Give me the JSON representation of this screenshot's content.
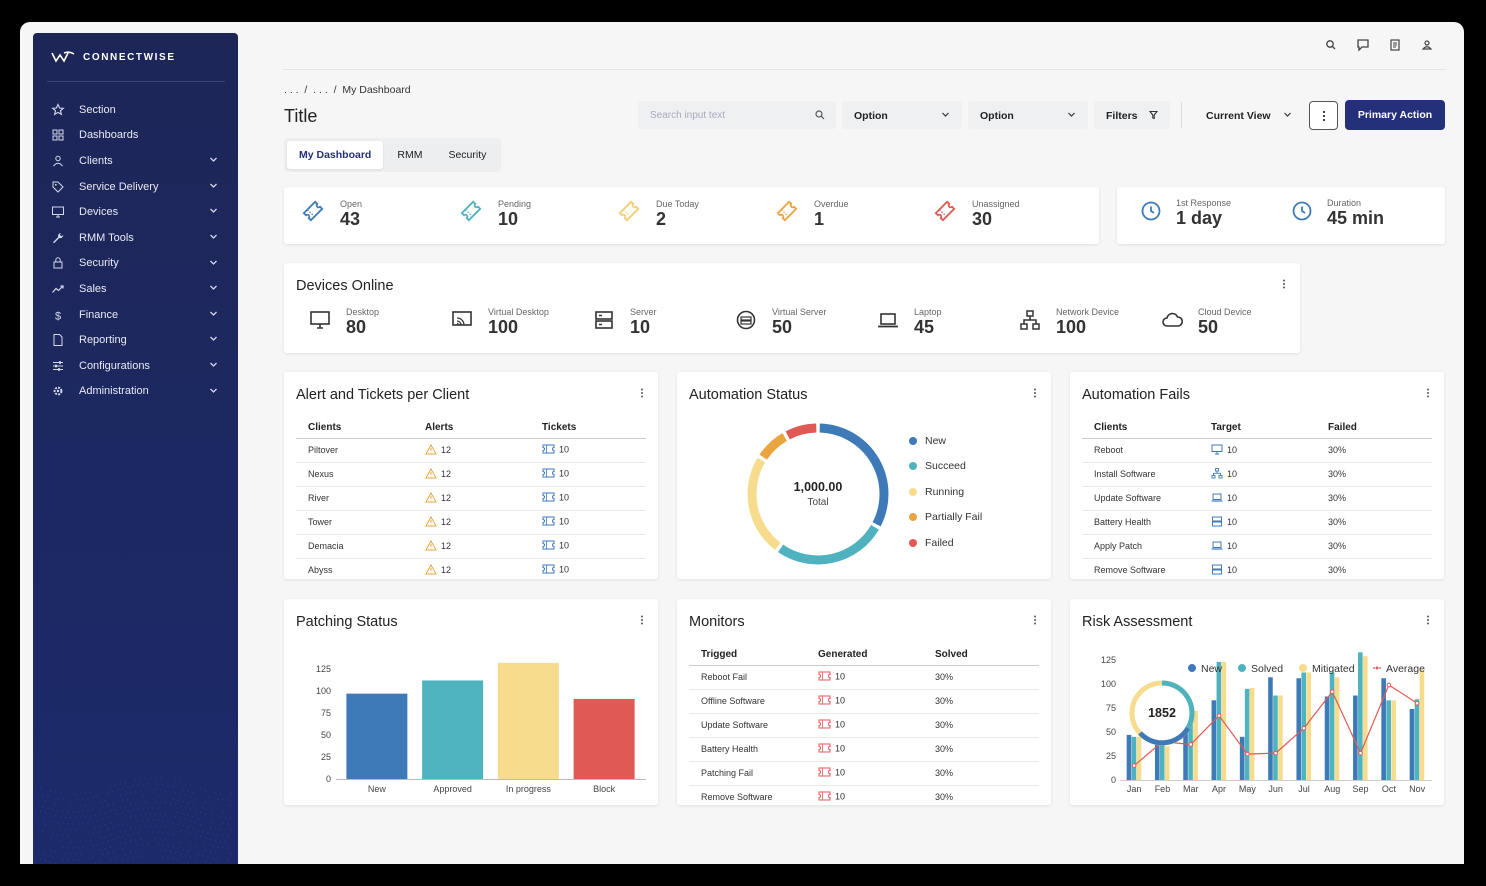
{
  "app": {
    "brand": "CONNECTWISE"
  },
  "sidebar": {
    "items": [
      {
        "label": "Section",
        "icon": "star-icon",
        "chevron": false
      },
      {
        "label": "Dashboards",
        "icon": "grid-icon",
        "chevron": false
      },
      {
        "label": "Clients",
        "icon": "user-icon",
        "chevron": true
      },
      {
        "label": "Service Delivery",
        "icon": "tag-icon",
        "chevron": true
      },
      {
        "label": "Devices",
        "icon": "monitor-icon",
        "chevron": true
      },
      {
        "label": "RMM Tools",
        "icon": "wrench-icon",
        "chevron": true
      },
      {
        "label": "Security",
        "icon": "lock-icon",
        "chevron": true
      },
      {
        "label": "Sales",
        "icon": "trend-icon",
        "chevron": true
      },
      {
        "label": "Finance",
        "icon": "dollar-icon",
        "chevron": true
      },
      {
        "label": "Reporting",
        "icon": "file-icon",
        "chevron": true
      },
      {
        "label": "Configurations",
        "icon": "sliders-icon",
        "chevron": true
      },
      {
        "label": "Administration",
        "icon": "gear-icon",
        "chevron": true
      }
    ]
  },
  "header": {
    "breadcrumb": ". . .  /  . . .  /  My Dashboard",
    "title": "Title",
    "search_placeholder": "Search input text",
    "option1": "Option",
    "option2": "Option",
    "filters": "Filters",
    "current_view": "Current View",
    "primary_action": "Primary Action"
  },
  "tabs": [
    "My Dashboard",
    "RMM",
    "Security"
  ],
  "tickets": [
    {
      "label": "Open",
      "value": "43",
      "color": "#3f7ab8"
    },
    {
      "label": "Pending",
      "value": "10",
      "color": "#4fb3bf"
    },
    {
      "label": "Due Today",
      "value": "2",
      "color": "#f2cf72"
    },
    {
      "label": "Overdue",
      "value": "1",
      "color": "#eaa440"
    },
    {
      "label": "Unassigned",
      "value": "30",
      "color": "#e05a55"
    }
  ],
  "response": [
    {
      "label": "1st Response",
      "value": "1 day"
    },
    {
      "label": "Duration",
      "value": "45 min"
    }
  ],
  "devices": {
    "title": "Devices Online",
    "items": [
      {
        "label": "Desktop",
        "value": "80",
        "icon": "desktop-icon"
      },
      {
        "label": "Virtual Desktop",
        "value": "100",
        "icon": "virtual-desktop-icon"
      },
      {
        "label": "Server",
        "value": "10",
        "icon": "server-icon"
      },
      {
        "label": "Virtual Server",
        "value": "50",
        "icon": "virtual-server-icon"
      },
      {
        "label": "Laptop",
        "value": "45",
        "icon": "laptop-icon"
      },
      {
        "label": "Network Device",
        "value": "100",
        "icon": "network-icon"
      },
      {
        "label": "Cloud Device",
        "value": "50",
        "icon": "cloud-icon"
      }
    ]
  },
  "alerts": {
    "title": "Alert and Tickets per Client",
    "headers": [
      "Clients",
      "Alerts",
      "Tickets"
    ],
    "rows": [
      [
        "Piltover",
        "12",
        "10"
      ],
      [
        "Nexus",
        "12",
        "10"
      ],
      [
        "River",
        "12",
        "10"
      ],
      [
        "Tower",
        "12",
        "10"
      ],
      [
        "Demacia",
        "12",
        "10"
      ],
      [
        "Abyss",
        "12",
        "10"
      ]
    ]
  },
  "automation_status": {
    "title": "Automation Status",
    "total_value": "1,000.00",
    "total_label": "Total",
    "legend": [
      {
        "name": "New",
        "color": "#3f7ab8"
      },
      {
        "name": "Succeed",
        "color": "#4fb3bf"
      },
      {
        "name": "Running",
        "color": "#f7dc8e"
      },
      {
        "name": "Partially Fail",
        "color": "#eaa440"
      },
      {
        "name": "Failed",
        "color": "#e05a55"
      }
    ]
  },
  "automation_fails": {
    "title": "Automation Fails",
    "headers": [
      "Clients",
      "Target",
      "Failed"
    ],
    "rows": [
      {
        "client": "Reboot",
        "icon": "monitor-icon",
        "target": "10",
        "failed": "30%"
      },
      {
        "client": "Install Software",
        "icon": "network-icon",
        "target": "10",
        "failed": "30%"
      },
      {
        "client": "Update Software",
        "icon": "laptop-icon",
        "target": "10",
        "failed": "30%"
      },
      {
        "client": "Battery Health",
        "icon": "server-icon",
        "target": "10",
        "failed": "30%"
      },
      {
        "client": "Apply Patch",
        "icon": "laptop-icon",
        "target": "10",
        "failed": "30%"
      },
      {
        "client": "Remove Software",
        "icon": "server-icon",
        "target": "10",
        "failed": "30%"
      }
    ]
  },
  "patching": {
    "title": "Patching Status"
  },
  "monitors": {
    "title": "Monitors",
    "headers": [
      "Trigged",
      "Generated",
      "Solved"
    ],
    "rows": [
      [
        "Reboot Fail",
        "10",
        "30%"
      ],
      [
        "Offline Software",
        "10",
        "30%"
      ],
      [
        "Update Software",
        "10",
        "30%"
      ],
      [
        "Battery Health",
        "10",
        "30%"
      ],
      [
        "Patching Fail",
        "10",
        "30%"
      ],
      [
        "Remove Software",
        "10",
        "30%"
      ]
    ]
  },
  "risk": {
    "title": "Risk Assessment",
    "badge": "1852"
  },
  "chart_data": [
    {
      "type": "pie",
      "title": "Automation Status",
      "categories": [
        "New",
        "Succeed",
        "Running",
        "Partially Fail",
        "Failed"
      ],
      "values": [
        33,
        27,
        24,
        8,
        8
      ],
      "colors": [
        "#3f7ab8",
        "#4fb3bf",
        "#f7dc8e",
        "#eaa440",
        "#e05a55"
      ]
    },
    {
      "type": "bar",
      "title": "Patching Status",
      "categories": [
        "New",
        "Approved",
        "In progress",
        "Block"
      ],
      "values": [
        97,
        112,
        132,
        91
      ],
      "colors": [
        "#3f7ab8",
        "#4fb3bf",
        "#f7dc8e",
        "#e05a55"
      ],
      "ylim": [
        0,
        125
      ],
      "yticks": [
        0,
        25,
        50,
        75,
        100,
        125
      ],
      "grid": false
    },
    {
      "type": "bar",
      "title": "Risk Assessment",
      "categories": [
        "Jan",
        "Feb",
        "Mar",
        "Apr",
        "May",
        "Jun",
        "Jul",
        "Aug",
        "Sep",
        "Oct",
        "Nov"
      ],
      "series": [
        {
          "name": "New",
          "type": "bar",
          "color": "#3f7ab8",
          "values": [
            47,
            48,
            55,
            83,
            45,
            107,
            106,
            87,
            88,
            106,
            74
          ]
        },
        {
          "name": "Solved",
          "type": "bar",
          "color": "#4fb3bf",
          "values": [
            45,
            43,
            65,
            123,
            95,
            88,
            112,
            112,
            133,
            83,
            84
          ]
        },
        {
          "name": "Mitigated",
          "type": "bar",
          "color": "#f7dc8e",
          "values": [
            45,
            35,
            72,
            123,
            96,
            88,
            112,
            107,
            129,
            83,
            115
          ]
        },
        {
          "name": "Average",
          "type": "line",
          "color": "#e05a55",
          "values": [
            15,
            40,
            37,
            67,
            27,
            28,
            54,
            92,
            28,
            99,
            80
          ]
        }
      ],
      "ylim": [
        0,
        125
      ],
      "yticks": [
        0,
        25,
        50,
        75,
        100,
        125
      ],
      "legend": "top-right",
      "grid": false
    }
  ]
}
